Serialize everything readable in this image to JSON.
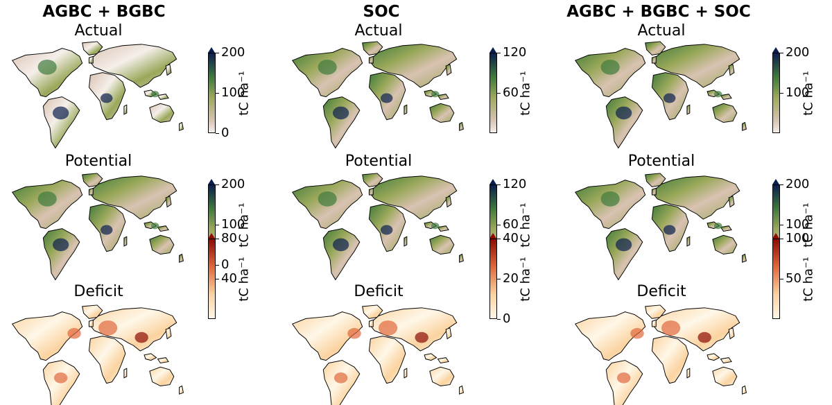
{
  "columns": [
    {
      "title": "AGBC + BGBC"
    },
    {
      "title": "SOC"
    },
    {
      "title": "AGBC + BGBC + SOC"
    }
  ],
  "row_titles": [
    "Actual",
    "Potential",
    "Deficit"
  ],
  "panels": [
    [
      {
        "colorbar": {
          "ticks": [
            "200",
            "100",
            "0"
          ],
          "label": "tC ha⁻¹",
          "palette": "green"
        }
      },
      {
        "colorbar": {
          "ticks": [
            "120",
            "60"
          ],
          "label": "tC ha⁻¹",
          "palette": "green"
        }
      },
      {
        "colorbar": {
          "ticks": [
            "200",
            "100"
          ],
          "label": "tC ha⁻¹",
          "palette": "green"
        }
      }
    ],
    [
      {
        "colorbar": {
          "ticks": [
            "200",
            "100",
            "0"
          ],
          "label": "tC ha⁻¹",
          "palette": "green"
        }
      },
      {
        "colorbar": {
          "ticks": [
            "120",
            "60"
          ],
          "label": "tC ha⁻¹",
          "palette": "green"
        }
      },
      {
        "colorbar": {
          "ticks": [
            "200",
            "100"
          ],
          "label": "tC ha⁻¹",
          "palette": "green"
        }
      }
    ],
    [
      {
        "colorbar": {
          "ticks": [
            "80",
            "40"
          ],
          "label": "tC ha⁻¹",
          "palette": "red"
        }
      },
      {
        "colorbar": {
          "ticks": [
            "40",
            "20",
            "0"
          ],
          "label": "tC ha⁻¹",
          "palette": "red"
        }
      },
      {
        "colorbar": {
          "ticks": [
            "100",
            "50"
          ],
          "label": "tC ha⁻¹",
          "palette": "red"
        }
      }
    ]
  ],
  "colors": {
    "green_top": "#0b1f4f",
    "green_mid": "#3f7a3c",
    "green_low": "#9aa85a",
    "green_base": "#d9c2b2",
    "green_zero": "#f5efea",
    "red_top": "#8c0c04",
    "red_mid": "#e0683c",
    "red_low": "#fbd3a0",
    "red_zero": "#fff7e8"
  }
}
